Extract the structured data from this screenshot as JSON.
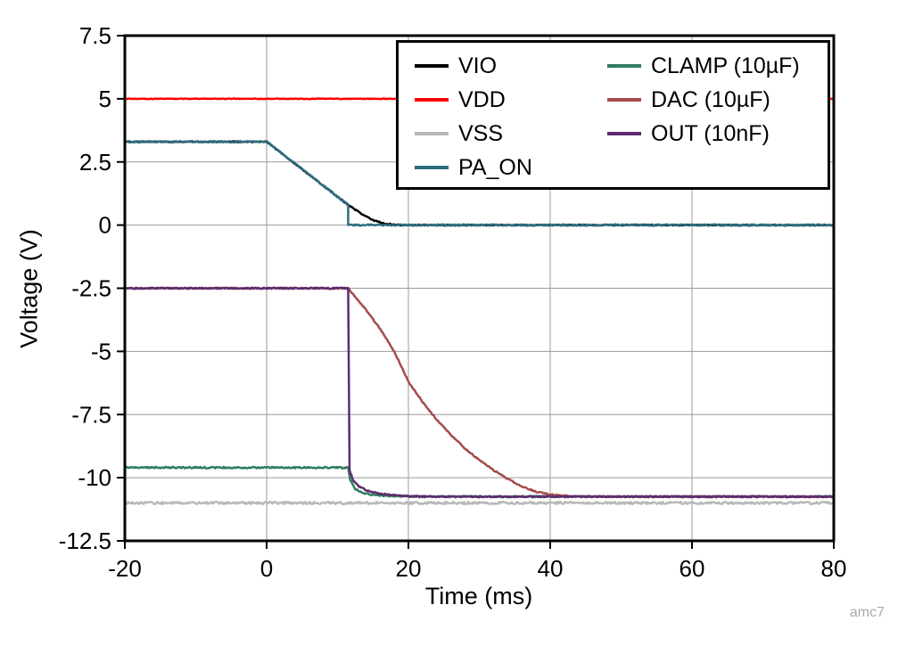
{
  "watermark": "amc7",
  "chart_data": {
    "type": "line",
    "title": "",
    "xlabel": "Time (ms)",
    "ylabel": "Voltage (V)",
    "xlim": [
      -20,
      80
    ],
    "ylim": [
      -12.5,
      7.5
    ],
    "xticks": [
      -20,
      0,
      20,
      40,
      60,
      80
    ],
    "yticks": [
      -12.5,
      -10,
      -7.5,
      -5,
      -2.5,
      0,
      2.5,
      5,
      7.5
    ],
    "grid": true,
    "grid_color": "#9b9b9b",
    "legend_position": "top-right",
    "legend_columns": [
      [
        "VIO",
        "VDD",
        "VSS",
        "PA_ON"
      ],
      [
        "CLAMP (10µF)",
        "DAC (10µF)",
        "OUT (10nF)"
      ]
    ],
    "series": [
      {
        "name": "VIO",
        "label": "VIO",
        "color": "#000000",
        "noise": 0.02,
        "points": [
          [
            -20,
            3.3
          ],
          [
            0,
            3.3
          ],
          [
            11.5,
            0.8
          ],
          [
            13.5,
            0.42
          ],
          [
            15,
            0.2
          ],
          [
            16.5,
            0.07
          ],
          [
            18,
            0.01
          ],
          [
            19,
            0
          ],
          [
            80,
            0
          ]
        ]
      },
      {
        "name": "VDD",
        "label": "VDD",
        "color": "#ff0000",
        "noise": 0.012,
        "points": [
          [
            -20,
            5
          ],
          [
            80,
            5
          ]
        ]
      },
      {
        "name": "VSS",
        "label": "VSS",
        "color": "#b8b8b8",
        "noise": 0.045,
        "points": [
          [
            -20,
            -11
          ],
          [
            80,
            -11
          ]
        ]
      },
      {
        "name": "PA_ON",
        "label": "PA_ON",
        "color": "#2d6d80",
        "noise": 0.03,
        "points": [
          [
            -20,
            3.3
          ],
          [
            0,
            3.3
          ],
          [
            11.5,
            0.8
          ],
          [
            11.5,
            0
          ],
          [
            80,
            0
          ]
        ]
      },
      {
        "name": "CLAMP",
        "label": "CLAMP (10µF)",
        "color": "#2e7d5e",
        "noise": 0.03,
        "points": [
          [
            -20,
            -9.6
          ],
          [
            11.5,
            -9.6
          ],
          [
            11.8,
            -10.1
          ],
          [
            12.5,
            -10.45
          ],
          [
            13.5,
            -10.6
          ],
          [
            15,
            -10.68
          ],
          [
            18,
            -10.73
          ],
          [
            22,
            -10.75
          ],
          [
            80,
            -10.75
          ]
        ]
      },
      {
        "name": "DAC",
        "label": "DAC (10µF)",
        "color": "#a64b4b",
        "noise": 0.025,
        "points": [
          [
            -20,
            -2.5
          ],
          [
            11.5,
            -2.5
          ],
          [
            12.5,
            -2.85
          ],
          [
            14,
            -3.35
          ],
          [
            16,
            -4.1
          ],
          [
            18,
            -5.0
          ],
          [
            20,
            -6.2
          ],
          [
            22,
            -7.0
          ],
          [
            24,
            -7.7
          ],
          [
            26,
            -8.3
          ],
          [
            28,
            -8.85
          ],
          [
            30,
            -9.3
          ],
          [
            32,
            -9.7
          ],
          [
            34,
            -10.05
          ],
          [
            36,
            -10.35
          ],
          [
            38,
            -10.55
          ],
          [
            40,
            -10.67
          ],
          [
            43,
            -10.73
          ],
          [
            46,
            -10.75
          ],
          [
            80,
            -10.75
          ]
        ]
      },
      {
        "name": "OUT",
        "label": "OUT (10nF)",
        "color": "#5e2b70",
        "noise": 0.025,
        "points": [
          [
            -20,
            -2.5
          ],
          [
            11.5,
            -2.5
          ],
          [
            11.7,
            -9.7
          ],
          [
            12.2,
            -10.1
          ],
          [
            13,
            -10.35
          ],
          [
            14.5,
            -10.55
          ],
          [
            16.5,
            -10.65
          ],
          [
            19,
            -10.72
          ],
          [
            23,
            -10.75
          ],
          [
            80,
            -10.75
          ]
        ]
      }
    ]
  }
}
